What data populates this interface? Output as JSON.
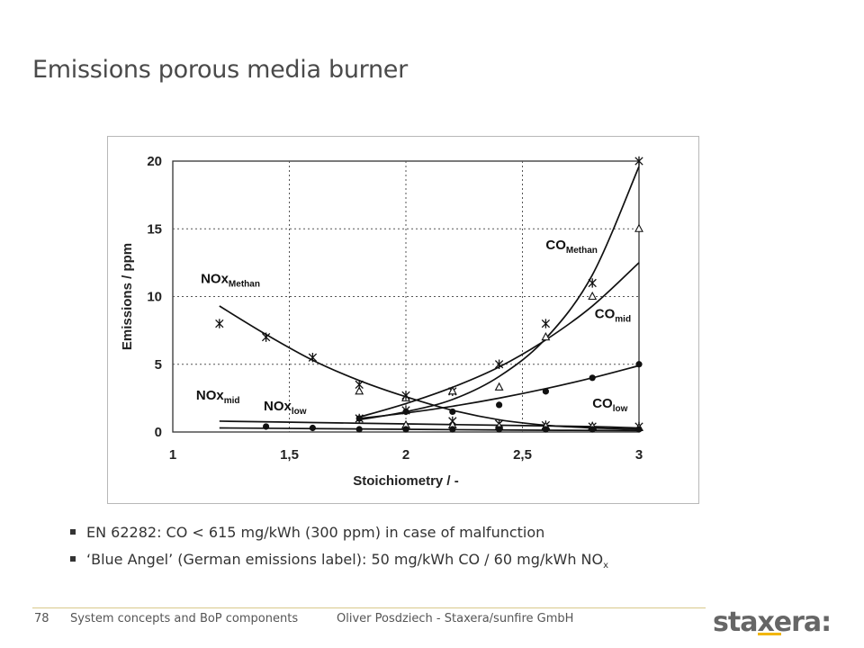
{
  "slide": {
    "title": "Emissions porous media burner",
    "bullets": [
      {
        "text": "EN 62282: CO < 615 mg/kWh (300 ppm) in case of malfunction",
        "sub": ""
      },
      {
        "text": "‘Blue Angel’ (German emissions label): 50 mg/kWh CO / 60 mg/kWh NO",
        "sub": "x"
      }
    ]
  },
  "footer": {
    "page": "78",
    "section": "System concepts and BoP components",
    "author": "Oliver Posdziech - Staxera/sunfire GmbH",
    "logo": "staxera:"
  },
  "colors": {
    "title": "#4a4a4a",
    "logo": "#666666",
    "logo_accent": "#f2b600"
  },
  "chart_data": {
    "type": "scatter",
    "xlabel": "Stoichiometry / -",
    "ylabel": "Emissions / ppm",
    "xlim": [
      1,
      3
    ],
    "ylim": [
      0,
      20
    ],
    "x_ticks": [
      "1",
      "1,5",
      "2",
      "2,5",
      "3"
    ],
    "y_ticks": [
      "0",
      "5",
      "10",
      "15",
      "20"
    ],
    "grid": "dotted",
    "series": [
      {
        "name": "CO",
        "sub": "Methan",
        "marker": "star",
        "points": [
          [
            1.8,
            1
          ],
          [
            2.0,
            1.6
          ],
          [
            2.2,
            3
          ],
          [
            2.4,
            5
          ],
          [
            2.6,
            8
          ],
          [
            2.8,
            11
          ],
          [
            3.0,
            20
          ]
        ],
        "fit": [
          [
            1.8,
            0.9
          ],
          [
            2.0,
            1.5
          ],
          [
            2.2,
            2.4
          ],
          [
            2.4,
            4.1
          ],
          [
            2.6,
            6.9
          ],
          [
            2.8,
            11.6
          ],
          [
            3.0,
            19.6
          ]
        ],
        "label_at": [
          2.6,
          13.5
        ]
      },
      {
        "name": "CO",
        "sub": "mid",
        "marker": "triangle",
        "points": [
          [
            1.8,
            3
          ],
          [
            2.0,
            2.5
          ],
          [
            2.2,
            3
          ],
          [
            2.4,
            3.3
          ],
          [
            2.6,
            7
          ],
          [
            2.8,
            10
          ],
          [
            3.0,
            15
          ]
        ],
        "fit": [
          [
            1.8,
            1.1
          ],
          [
            2.0,
            2.1
          ],
          [
            2.2,
            3.3
          ],
          [
            2.4,
            4.8
          ],
          [
            2.6,
            6.8
          ],
          [
            2.8,
            9.3
          ],
          [
            3.0,
            12.5
          ]
        ],
        "label_at": [
          2.81,
          8.4
        ]
      },
      {
        "name": "CO",
        "sub": "low",
        "marker": "dot",
        "points": [
          [
            1.8,
            1
          ],
          [
            2.0,
            1.5
          ],
          [
            2.2,
            1.5
          ],
          [
            2.4,
            2
          ],
          [
            2.6,
            3
          ],
          [
            2.8,
            4
          ],
          [
            3.0,
            5
          ]
        ],
        "fit": [
          [
            1.8,
            1.0
          ],
          [
            2.0,
            1.4
          ],
          [
            2.2,
            1.9
          ],
          [
            2.4,
            2.5
          ],
          [
            2.6,
            3.2
          ],
          [
            2.8,
            4.0
          ],
          [
            3.0,
            4.9
          ]
        ],
        "label_at": [
          2.8,
          1.8
        ]
      },
      {
        "name": "NOx",
        "sub": "Methan",
        "marker": "star",
        "points": [
          [
            1.2,
            8
          ],
          [
            1.4,
            7
          ],
          [
            1.6,
            5.5
          ],
          [
            1.8,
            3.5
          ],
          [
            2.0,
            2.7
          ],
          [
            2.2,
            0.8
          ],
          [
            2.4,
            0.6
          ],
          [
            2.6,
            0.5
          ],
          [
            2.8,
            0.4
          ],
          [
            3.0,
            0.4
          ]
        ],
        "fit": [
          [
            1.2,
            9.3
          ],
          [
            1.4,
            7.2
          ],
          [
            1.6,
            5.3
          ],
          [
            1.8,
            3.8
          ],
          [
            2.0,
            2.6
          ],
          [
            2.2,
            1.6
          ],
          [
            2.4,
            0.9
          ],
          [
            2.6,
            0.5
          ],
          [
            2.8,
            0.3
          ],
          [
            3.0,
            0.2
          ]
        ],
        "label_at": [
          1.12,
          11.0
        ]
      },
      {
        "name": "NOx",
        "sub": "mid",
        "marker": "triangle",
        "points": [
          [
            2.0,
            0.5
          ],
          [
            2.2,
            0.5
          ],
          [
            2.4,
            0.4
          ],
          [
            2.6,
            0.4
          ],
          [
            2.8,
            0.4
          ],
          [
            3.0,
            0.3
          ]
        ],
        "fit": [
          [
            1.2,
            0.8
          ],
          [
            1.6,
            0.7
          ],
          [
            2.0,
            0.6
          ],
          [
            2.4,
            0.5
          ],
          [
            2.8,
            0.4
          ],
          [
            3.0,
            0.3
          ]
        ],
        "label_at": [
          1.1,
          2.4
        ]
      },
      {
        "name": "NOx",
        "sub": "low",
        "marker": "dot",
        "points": [
          [
            1.4,
            0.4
          ],
          [
            1.6,
            0.3
          ],
          [
            1.8,
            0.2
          ],
          [
            2.0,
            0.2
          ],
          [
            2.2,
            0.2
          ],
          [
            2.4,
            0.2
          ],
          [
            2.6,
            0.2
          ],
          [
            2.8,
            0.2
          ],
          [
            3.0,
            0.2
          ]
        ],
        "fit": [
          [
            1.2,
            0.3
          ],
          [
            1.6,
            0.25
          ],
          [
            2.0,
            0.2
          ],
          [
            2.4,
            0.15
          ],
          [
            3.0,
            0.1
          ]
        ],
        "label_at": [
          1.39,
          1.6
        ]
      }
    ]
  }
}
